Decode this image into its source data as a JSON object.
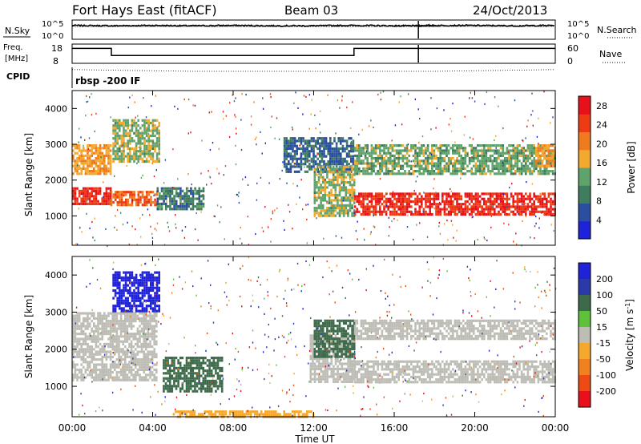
{
  "header": {
    "station": "Fort Hays East (fitACF)",
    "beam": "Beam 03",
    "date": "24/Oct/2013"
  },
  "noise_panel": {
    "left_label": "N.Sky",
    "right_label": "N.Search",
    "left_ticks": [
      "10^5",
      "10^0"
    ],
    "right_ticks": [
      "10^5",
      "10^0"
    ]
  },
  "freq_panel": {
    "left_label_1": "Freq.",
    "left_label_2": "[MHz]",
    "right_label": "Nave",
    "left_ticks": [
      "18",
      "8"
    ],
    "right_ticks": [
      "60",
      "0"
    ]
  },
  "cpid": {
    "label": "CPID",
    "value": "rbsp -200 IF"
  },
  "x_axis": {
    "label": "Time UT",
    "ticks": [
      "00:00",
      "04:00",
      "08:00",
      "12:00",
      "16:00",
      "20:00",
      "00:00"
    ]
  },
  "colors": {
    "power": [
      "#1e22d8",
      "#2a4fa0",
      "#3f7d5e",
      "#5fa36a",
      "#f2a92e",
      "#f07a1e",
      "#ee3b14",
      "#e8101a"
    ],
    "velocity": [
      "#1e22d8",
      "#2b3aa8",
      "#3d6a4a",
      "#5dc23a",
      "#bdbdb5",
      "#f6a82c",
      "#f1801e",
      "#ee4a14",
      "#e8101a"
    ]
  },
  "chart_data": [
    {
      "type": "line",
      "title": "N.Sky / N.Search",
      "x_range_hours": [
        0,
        24
      ],
      "ylim_log10": [
        0,
        5
      ],
      "series": [
        {
          "name": "N.Sky",
          "x": [
            0,
            2,
            4,
            6,
            8,
            10,
            12,
            14,
            16,
            17.2,
            18,
            20,
            22,
            24
          ],
          "y": [
            3.7,
            3.6,
            3.7,
            3.6,
            3.7,
            3.6,
            3.6,
            3.7,
            3.6,
            3.6,
            3.7,
            3.7,
            3.6,
            3.7
          ]
        },
        {
          "name": "N.Search",
          "x": [
            0,
            4,
            8,
            12,
            16,
            20,
            24
          ],
          "y": [
            3.4,
            3.4,
            3.4,
            3.4,
            3.4,
            3.4,
            3.4
          ]
        }
      ]
    },
    {
      "type": "line",
      "title": "Freq. / Nave",
      "x_range_hours": [
        0,
        24
      ],
      "ylim": [
        8,
        18
      ],
      "series": [
        {
          "name": "Freq. [MHz]",
          "x": [
            0,
            1.95,
            1.95,
            14.0,
            14.0,
            24
          ],
          "y": [
            16,
            16,
            12,
            12,
            16,
            16
          ]
        },
        {
          "name": "Nave",
          "x": [
            0,
            6,
            12,
            18,
            24
          ],
          "y": [
            4,
            3,
            3,
            3,
            4
          ]
        }
      ]
    },
    {
      "type": "heatmap",
      "title": "Power",
      "xlabel": "Time UT",
      "ylabel": "Slant Range [km]",
      "x_range_hours": [
        0,
        24
      ],
      "ylim": [
        180,
        4500
      ],
      "yticks": [
        1000,
        2000,
        3000,
        4000
      ],
      "colorbar": {
        "label": "Power [dB]",
        "ticks": [
          4,
          8,
          12,
          16,
          20,
          24,
          28
        ],
        "range": [
          0,
          30
        ]
      },
      "regions": [
        {
          "t": [
            0.0,
            1.9
          ],
          "range": [
            1300,
            1800
          ],
          "value": 26
        },
        {
          "t": [
            0.0,
            1.9
          ],
          "range": [
            2200,
            3000
          ],
          "value": 18
        },
        {
          "t": [
            1.9,
            4.2
          ],
          "range": [
            1300,
            1700
          ],
          "value": 22
        },
        {
          "t": [
            2.0,
            4.3
          ],
          "range": [
            2500,
            3700
          ],
          "value": 14
        },
        {
          "t": [
            4.2,
            6.5
          ],
          "range": [
            1200,
            1800
          ],
          "value": 9
        },
        {
          "t": [
            10.5,
            14.0
          ],
          "range": [
            2200,
            3200
          ],
          "value": 7
        },
        {
          "t": [
            12.0,
            14.0
          ],
          "range": [
            1000,
            2400
          ],
          "value": 14
        },
        {
          "t": [
            14.0,
            24.0
          ],
          "range": [
            1050,
            1650
          ],
          "value": 26
        },
        {
          "t": [
            14.0,
            24.0
          ],
          "range": [
            2200,
            3000
          ],
          "value": 13
        },
        {
          "t": [
            23.0,
            24.0
          ],
          "range": [
            2400,
            3000
          ],
          "value": 18
        }
      ]
    },
    {
      "type": "heatmap",
      "title": "Velocity",
      "xlabel": "Time UT",
      "ylabel": "Slant Range [km]",
      "x_range_hours": [
        0,
        24
      ],
      "ylim": [
        180,
        4500
      ],
      "yticks": [
        1000,
        2000,
        3000,
        4000
      ],
      "colorbar": {
        "label": "Velocity [m s^-1]",
        "ticks": [
          200,
          100,
          50,
          15,
          -15,
          -50,
          -100,
          -200
        ],
        "range": [
          -250,
          250
        ]
      },
      "regions": [
        {
          "t": [
            0.0,
            4.2
          ],
          "range": [
            1200,
            3000
          ],
          "value": 0
        },
        {
          "t": [
            2.0,
            4.3
          ],
          "range": [
            3000,
            4100
          ],
          "value": 220
        },
        {
          "t": [
            4.5,
            7.5
          ],
          "range": [
            900,
            1800
          ],
          "value": 60
        },
        {
          "t": [
            11.8,
            14.0
          ],
          "range": [
            1100,
            2400
          ],
          "value": 0
        },
        {
          "t": [
            12.0,
            14.0
          ],
          "range": [
            1800,
            2800
          ],
          "value": 60
        },
        {
          "t": [
            14.0,
            24.0
          ],
          "range": [
            1100,
            1700
          ],
          "value": 0
        },
        {
          "t": [
            14.0,
            24.0
          ],
          "range": [
            2300,
            2800
          ],
          "value": 0
        },
        {
          "t": [
            5.0,
            12.0
          ],
          "range": [
            200,
            350
          ],
          "value": -40
        }
      ]
    }
  ]
}
